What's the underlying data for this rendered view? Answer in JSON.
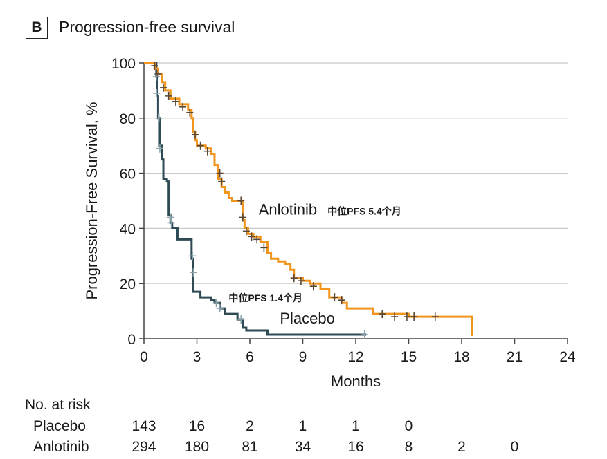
{
  "panel": {
    "letter": "B",
    "title": "Progression-free survival"
  },
  "colors": {
    "placebo": "#2d4a55",
    "anlotinib": "#f0951e",
    "grid": "#c8c8c8",
    "axis": "#444444"
  },
  "chart_data": {
    "type": "line",
    "subtype": "kaplan-meier-step",
    "xlabel": "Months",
    "ylabel": "Progression-Free Survival, %",
    "xlim": [
      0,
      24
    ],
    "ylim": [
      0,
      100
    ],
    "xticks": [
      0,
      3,
      6,
      9,
      12,
      15,
      18,
      21,
      24
    ],
    "yticks": [
      0,
      20,
      40,
      60,
      80,
      100
    ],
    "grid": "horizontal",
    "series": [
      {
        "name": "Placebo",
        "annotation": "中位PFS 1.4个月",
        "color": "#2d4a55",
        "x": [
          0,
          0.6,
          0.7,
          0.75,
          0.8,
          0.9,
          1.0,
          1.1,
          1.3,
          1.4,
          1.5,
          1.6,
          1.9,
          2.7,
          2.8,
          3.2,
          3.8,
          4.0,
          4.3,
          4.6,
          5.3,
          5.6,
          5.8,
          7.0,
          12.6
        ],
        "y": [
          100,
          100,
          95,
          88,
          80,
          70,
          65,
          58,
          57,
          45,
          42,
          40,
          36,
          29,
          17,
          15,
          14,
          13,
          11,
          9,
          7,
          4,
          3,
          1.5,
          1.5
        ],
        "censor_x": [
          0.7,
          0.72,
          0.85,
          0.9,
          1.5,
          1.55,
          2.75,
          2.8,
          4.1,
          4.3,
          5.5,
          12.5
        ],
        "censor_y": [
          95,
          89,
          80,
          69,
          44,
          42,
          30,
          24,
          13,
          11,
          7,
          1.5
        ]
      },
      {
        "name": "Anlotinib",
        "annotation": "中位PFS 5.4个月",
        "color": "#f0951e",
        "x": [
          0,
          0.5,
          0.6,
          0.8,
          1.0,
          1.2,
          1.5,
          2.0,
          2.5,
          2.7,
          2.8,
          2.9,
          3.0,
          3.5,
          3.8,
          4.0,
          4.2,
          4.4,
          4.6,
          4.8,
          5.0,
          5.5,
          5.6,
          5.7,
          5.9,
          6.2,
          6.6,
          7.0,
          7.2,
          7.6,
          8.0,
          8.3,
          8.5,
          9.0,
          9.4,
          10.0,
          10.5,
          11.2,
          11.5,
          12.0,
          13.0,
          15.0,
          17.0,
          18.5,
          18.6
        ],
        "y": [
          100,
          100,
          98,
          96,
          93,
          90,
          87,
          85,
          83,
          80,
          75,
          72,
          70,
          69,
          67,
          63,
          58,
          55,
          53,
          51,
          50,
          50,
          43,
          40,
          38,
          37,
          35,
          31,
          29,
          28,
          27,
          25,
          22,
          21,
          20,
          18,
          15,
          13,
          11,
          11,
          9,
          8,
          8,
          8,
          1
        ],
        "censor_x": [
          0.6,
          0.8,
          1.1,
          1.4,
          1.8,
          2.2,
          2.6,
          2.9,
          3.2,
          3.6,
          4.3,
          4.4,
          5.5,
          5.6,
          5.8,
          6.1,
          6.4,
          6.8,
          8.5,
          8.9,
          9.6,
          10.8,
          11.2,
          13.5,
          14.2,
          14.9,
          15.3,
          16.5
        ],
        "censor_y": [
          99,
          96,
          91,
          88,
          86,
          84,
          82,
          74,
          70,
          68,
          60,
          57,
          50,
          44,
          39,
          37,
          36,
          33,
          22,
          21,
          19,
          15,
          14,
          9,
          8,
          8,
          8,
          8
        ]
      }
    ],
    "labels": [
      {
        "text": "Anlotinib",
        "x": 6.5,
        "y": 45
      },
      {
        "text": "中位PFS 5.4个月",
        "x": 10.4,
        "y": 45
      },
      {
        "text": "中位PFS 1.4个月",
        "x": 4.8,
        "y": 13.5
      },
      {
        "text": "Placebo",
        "x": 7.7,
        "y": 5.5
      }
    ]
  },
  "risk_table": {
    "title": "No. at risk",
    "months": [
      0,
      3,
      6,
      9,
      12,
      15,
      18,
      21
    ],
    "rows": [
      {
        "label": "Placebo",
        "counts": [
          "143",
          "16",
          "2",
          "1",
          "1",
          "0"
        ]
      },
      {
        "label": "Anlotinib",
        "counts": [
          "294",
          "180",
          "81",
          "34",
          "16",
          "8",
          "2",
          "0"
        ]
      }
    ]
  }
}
